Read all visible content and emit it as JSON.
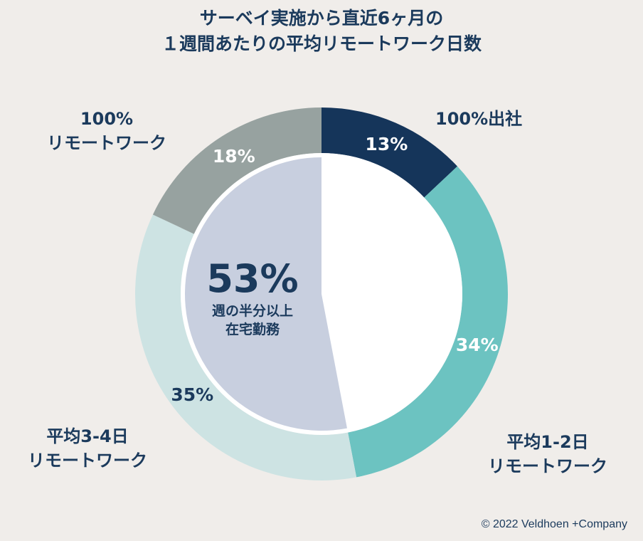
{
  "title": {
    "line1": "サーベイ実施から直近6ヶ月の",
    "line2": "１週間あたりの平均リモートワーク日数"
  },
  "chart_data": {
    "type": "pie",
    "title": "サーベイ実施から直近6ヶ月の １週間あたりの平均リモートワーク日数",
    "slices": [
      {
        "name": "100%出社",
        "value": 13,
        "label": "13%",
        "color": "#15355a",
        "label_color": "#ffffff"
      },
      {
        "name": "平均1-2日リモートワーク",
        "value": 34,
        "label": "34%",
        "color": "#6cc3c1",
        "label_color": "#ffffff"
      },
      {
        "name": "平均3-4日リモートワーク",
        "value": 35,
        "label": "35%",
        "color": "#cde3e3",
        "label_color": "#1b3a5c"
      },
      {
        "name": "100%リモートワーク",
        "value": 18,
        "label": "18%",
        "color": "#97a2a0",
        "label_color": "#ffffff"
      }
    ],
    "inner_highlight": {
      "value": 53,
      "color": "#c8cfdf"
    }
  },
  "labels": {
    "office": "100%出社",
    "r12_line1": "平均1-2日",
    "r12_line2": "リモートワーク",
    "r34_line1": "平均3-4日",
    "r34_line2": "リモートワーク",
    "full_line1": "100%",
    "full_line2": "リモートワーク"
  },
  "center": {
    "big": "53%",
    "sub1": "週の半分以上",
    "sub2": "在宅勤務"
  },
  "footer": "© 2022 Veldhoen +Company"
}
